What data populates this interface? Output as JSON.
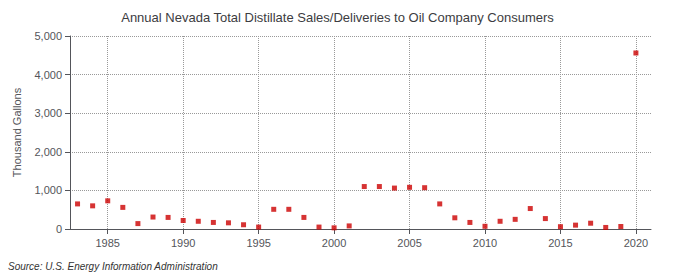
{
  "chart_data": {
    "type": "scatter",
    "title": "Annual Nevada Total Distillate Sales/Deliveries to Oil Company Consumers",
    "ylabel": "Thousand Gallons",
    "annotation": "Source: U.S. Energy Information Administration",
    "x": [
      1983,
      1984,
      1985,
      1986,
      1987,
      1988,
      1989,
      1990,
      1991,
      1992,
      1993,
      1994,
      1995,
      1996,
      1997,
      1998,
      1999,
      2000,
      2001,
      2002,
      2003,
      2004,
      2005,
      2006,
      2007,
      2008,
      2009,
      2010,
      2011,
      2012,
      2013,
      2014,
      2015,
      2016,
      2017,
      2018,
      2019,
      2020
    ],
    "values": [
      650,
      600,
      730,
      560,
      140,
      310,
      300,
      220,
      200,
      170,
      160,
      110,
      50,
      510,
      510,
      300,
      50,
      30,
      80,
      1100,
      1100,
      1060,
      1080,
      1070,
      650,
      290,
      170,
      70,
      200,
      250,
      530,
      270,
      60,
      100,
      150,
      40,
      65,
      4560
    ],
    "color": "#cc0000",
    "marker": "square",
    "xlim": [
      1982.5,
      2021
    ],
    "xticks": [
      1985,
      1990,
      1995,
      2000,
      2005,
      2010,
      2015,
      2020
    ],
    "ylim": [
      0,
      5000
    ],
    "yticks": [
      0,
      {
        "value": 1000,
        "label": "1,000"
      },
      {
        "value": 2000,
        "label": "2,000"
      },
      {
        "value": 3000,
        "label": "3,000"
      },
      {
        "value": 4000,
        "label": "4,000"
      },
      {
        "value": 5000,
        "label": "5,000"
      }
    ],
    "grid": true
  }
}
